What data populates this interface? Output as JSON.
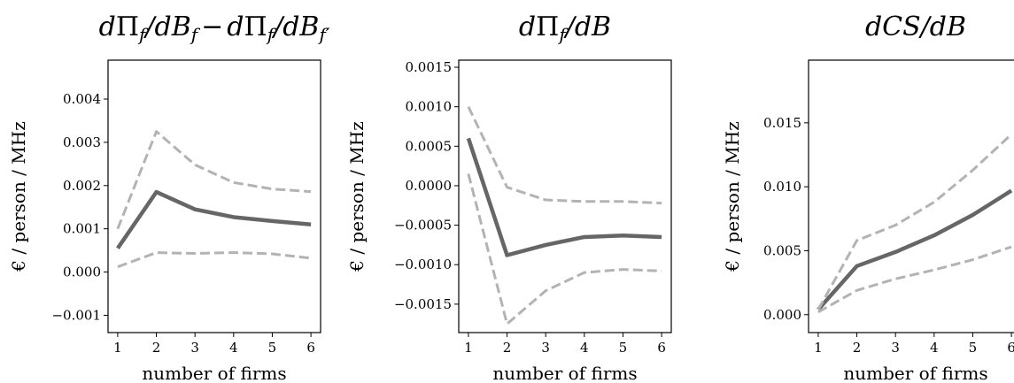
{
  "chart_data": [
    {
      "type": "line",
      "title_parts": {
        "d1": "d",
        "pi1": "Π",
        "f1": "f",
        "mid1": "/dB",
        "f2": "f",
        "minus": "−",
        "d2": "d",
        "pi2": "Π",
        "f3": "f",
        "mid2": "/dB",
        "f4": "f′"
      },
      "xlabel": "number of firms",
      "ylabel": "€ / person / MHz",
      "x": [
        1,
        2,
        3,
        4,
        5,
        6
      ],
      "xticks": [
        "1",
        "2",
        "3",
        "4",
        "5",
        "6"
      ],
      "ylim": [
        -0.0014,
        0.0049
      ],
      "yticks": [
        -0.001,
        0.0,
        0.001,
        0.002,
        0.003,
        0.004
      ],
      "ytick_labels": [
        "−0.001",
        "0.000",
        "0.001",
        "0.002",
        "0.003",
        "0.004"
      ],
      "series": [
        {
          "style": "solid",
          "color": "#666666",
          "values": [
            0.00055,
            0.00185,
            0.00145,
            0.00127,
            0.00118,
            0.0011
          ]
        },
        {
          "style": "dashed",
          "color": "#b3b3b3",
          "values": [
            0.001,
            0.00325,
            0.00248,
            0.00207,
            0.00192,
            0.00186
          ]
        },
        {
          "style": "dashed",
          "color": "#b3b3b3",
          "values": [
            0.00012,
            0.00045,
            0.00043,
            0.00045,
            0.00042,
            0.00032
          ]
        }
      ]
    },
    {
      "type": "line",
      "title_parts": {
        "d1": "d",
        "pi1": "Π",
        "f1": "f",
        "mid1": "/dB"
      },
      "xlabel": "number of firms",
      "ylabel": "€ / person / MHz",
      "x": [
        1,
        2,
        3,
        4,
        5,
        6
      ],
      "xticks": [
        "1",
        "2",
        "3",
        "4",
        "5",
        "6"
      ],
      "ylim": [
        -0.00186,
        0.00159
      ],
      "yticks": [
        -0.0015,
        -0.001,
        -0.0005,
        0.0,
        0.0005,
        0.001,
        0.0015
      ],
      "ytick_labels": [
        "−0.0015",
        "−0.0010",
        "−0.0005",
        "0.0000",
        "0.0005",
        "0.0010",
        "0.0015"
      ],
      "series": [
        {
          "style": "solid",
          "color": "#666666",
          "values": [
            0.0006,
            -0.00088,
            -0.00075,
            -0.00065,
            -0.00063,
            -0.00065
          ]
        },
        {
          "style": "dashed",
          "color": "#b3b3b3",
          "values": [
            0.001,
            -2e-05,
            -0.00018,
            -0.0002,
            -0.0002,
            -0.00022
          ]
        },
        {
          "style": "dashed",
          "color": "#b3b3b3",
          "values": [
            0.00015,
            -0.00175,
            -0.00133,
            -0.0011,
            -0.00106,
            -0.00108
          ]
        }
      ]
    },
    {
      "type": "line",
      "title_parts": {
        "d1": "dCS",
        "mid1": "/dB"
      },
      "xlabel": "number of firms",
      "ylabel": "€ / person / MHz",
      "x": [
        1,
        2,
        3,
        4,
        5,
        6
      ],
      "xticks": [
        "1",
        "2",
        "3",
        "4",
        "5",
        "6"
      ],
      "ylim": [
        -0.0014,
        0.0199
      ],
      "yticks": [
        0.0,
        0.005,
        0.01,
        0.015
      ],
      "ytick_labels": [
        "0.000",
        "0.005",
        "0.010",
        "0.015"
      ],
      "series": [
        {
          "style": "solid",
          "color": "#666666",
          "values": [
            0.0004,
            0.0038,
            0.0049,
            0.0062,
            0.0078,
            0.0097
          ]
        },
        {
          "style": "dashed",
          "color": "#b3b3b3",
          "values": [
            0.0004,
            0.0058,
            0.007,
            0.0088,
            0.0113,
            0.0141
          ]
        },
        {
          "style": "dashed",
          "color": "#b3b3b3",
          "values": [
            0.0002,
            0.0019,
            0.0028,
            0.0035,
            0.0043,
            0.0053
          ]
        }
      ]
    }
  ]
}
